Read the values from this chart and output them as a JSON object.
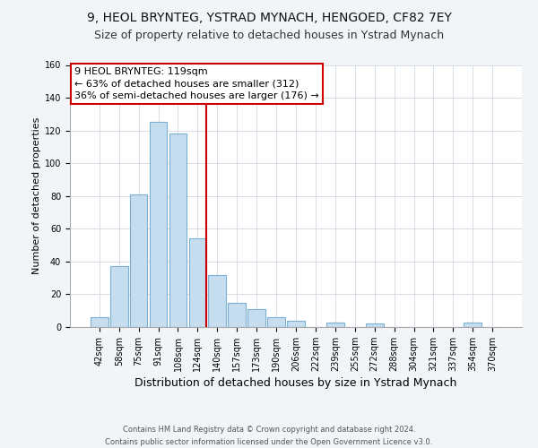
{
  "title": "9, HEOL BRYNTEG, YSTRAD MYNACH, HENGOED, CF82 7EY",
  "subtitle": "Size of property relative to detached houses in Ystrad Mynach",
  "xlabel": "Distribution of detached houses by size in Ystrad Mynach",
  "ylabel": "Number of detached properties",
  "categories": [
    "42sqm",
    "58sqm",
    "75sqm",
    "91sqm",
    "108sqm",
    "124sqm",
    "140sqm",
    "157sqm",
    "173sqm",
    "190sqm",
    "206sqm",
    "222sqm",
    "239sqm",
    "255sqm",
    "272sqm",
    "288sqm",
    "304sqm",
    "321sqm",
    "337sqm",
    "354sqm",
    "370sqm"
  ],
  "values": [
    6,
    37,
    81,
    125,
    118,
    54,
    32,
    15,
    11,
    6,
    4,
    0,
    3,
    0,
    2,
    0,
    0,
    0,
    0,
    3,
    0
  ],
  "bar_color": "#c6ddf0",
  "bar_edge_color": "#7ab0d4",
  "vline_color": "#cc0000",
  "ylim": [
    0,
    160
  ],
  "yticks": [
    0,
    20,
    40,
    60,
    80,
    100,
    120,
    140,
    160
  ],
  "annotation_title": "9 HEOL BRYNTEG: 119sqm",
  "annotation_line1": "← 63% of detached houses are smaller (312)",
  "annotation_line2": "36% of semi-detached houses are larger (176) →",
  "annotation_box_edge": "#cc0000",
  "footer_line1": "Contains HM Land Registry data © Crown copyright and database right 2024.",
  "footer_line2": "Contains public sector information licensed under the Open Government Licence v3.0.",
  "background_color": "#f2f5f8",
  "plot_background": "#ffffff",
  "title_fontsize": 10,
  "subtitle_fontsize": 9,
  "ylabel_fontsize": 8,
  "xlabel_fontsize": 9,
  "tick_fontsize": 7,
  "annot_fontsize": 8,
  "footer_fontsize": 6
}
